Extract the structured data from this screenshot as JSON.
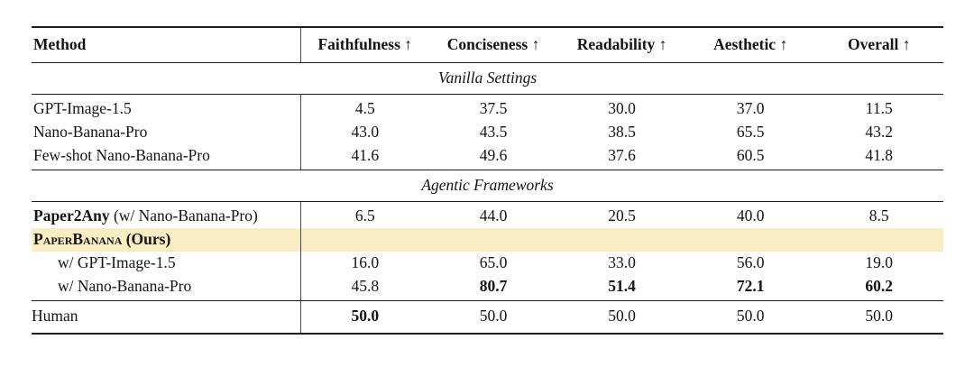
{
  "colors": {
    "highlight": "#faecc3",
    "rule": "#1c1c1c",
    "text": "#141414"
  },
  "table": {
    "header": {
      "method": "Method",
      "cols": [
        "Faithfulness ↑",
        "Conciseness ↑",
        "Readability ↑",
        "Aesthetic ↑",
        "Overall ↑"
      ]
    },
    "sections": {
      "vanilla": "Vanilla Settings",
      "agentic": "Agentic Frameworks"
    },
    "rows": {
      "gpt_image": {
        "method": "GPT-Image-1.5",
        "v": [
          "4.5",
          "37.5",
          "30.0",
          "37.0",
          "11.5"
        ]
      },
      "nano_banana": {
        "method": "Nano-Banana-Pro",
        "v": [
          "43.0",
          "43.5",
          "38.5",
          "65.5",
          "43.2"
        ]
      },
      "fewshot_nano": {
        "method": "Few-shot Nano-Banana-Pro",
        "v": [
          "41.6",
          "49.6",
          "37.6",
          "60.5",
          "41.8"
        ]
      },
      "paper2any": {
        "name": "Paper2Any",
        "suffix": " (w/ Nano-Banana-Pro)",
        "v": [
          "6.5",
          "44.0",
          "20.5",
          "40.0",
          "8.5"
        ]
      },
      "paperbanana": {
        "name": "PaperBanana",
        "suffix": " (Ours)"
      },
      "pb_gpt": {
        "method": "w/ GPT-Image-1.5",
        "v": [
          "16.0",
          "65.0",
          "33.0",
          "56.0",
          "19.0"
        ]
      },
      "pb_nano": {
        "method": "w/ Nano-Banana-Pro",
        "v": [
          "45.8",
          "80.7",
          "51.4",
          "72.1",
          "60.2"
        ]
      },
      "human": {
        "method": "Human",
        "v": [
          "50.0",
          "50.0",
          "50.0",
          "50.0",
          "50.0"
        ]
      }
    }
  }
}
